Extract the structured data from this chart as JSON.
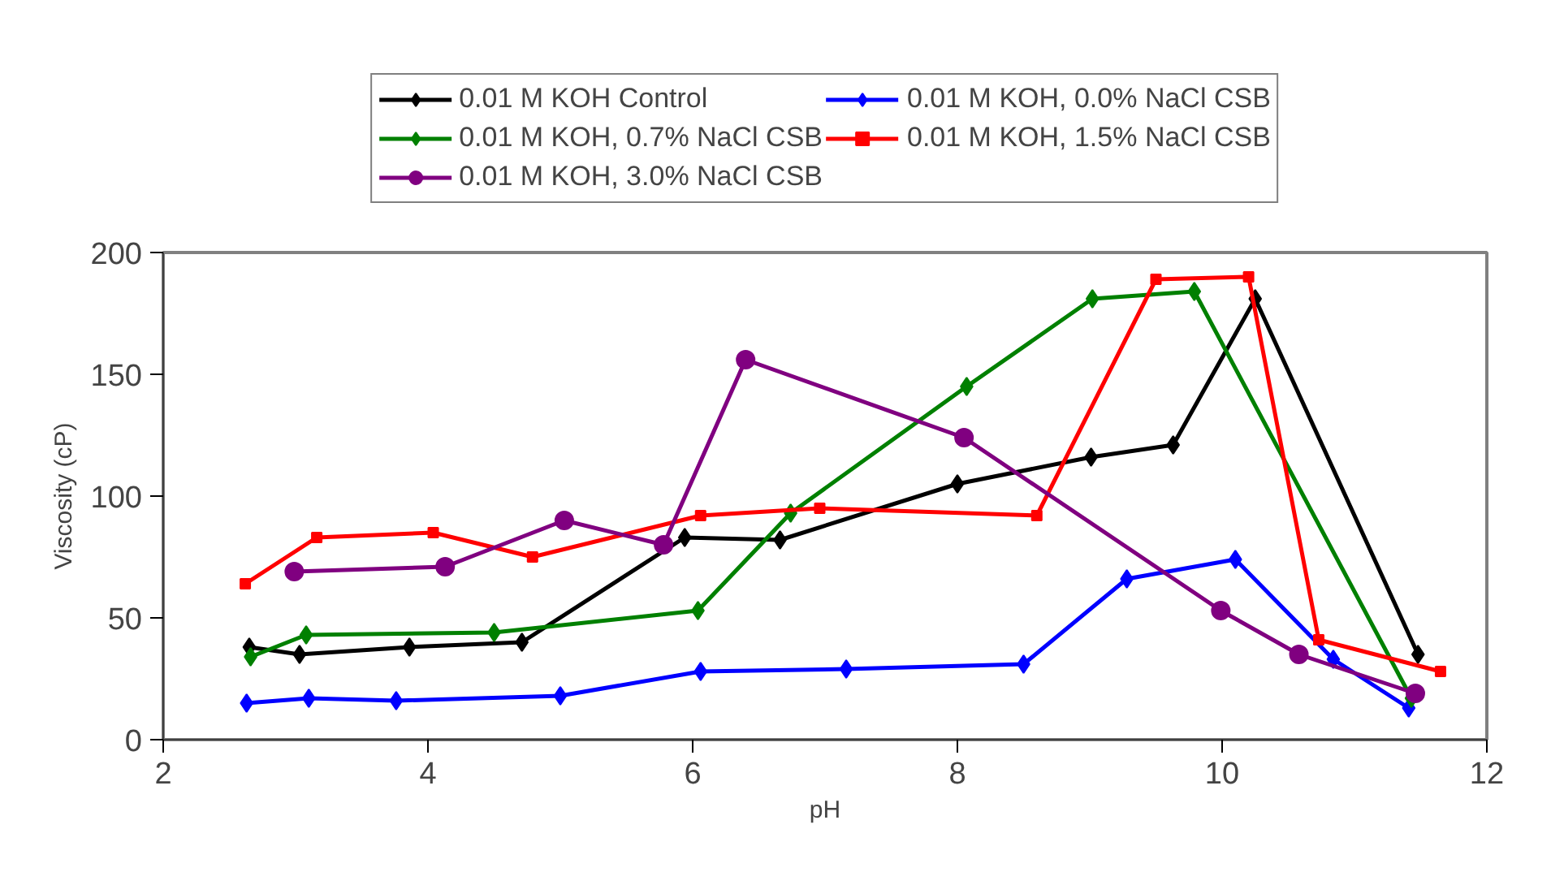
{
  "chart_data": {
    "type": "line",
    "xlabel": "pH",
    "ylabel": "Viscosity (cP)",
    "xlim": [
      2,
      12
    ],
    "xticks": [
      2,
      4,
      6,
      8,
      10,
      12
    ],
    "ylim": [
      0,
      200
    ],
    "yticks": [
      0,
      50,
      100,
      150,
      200
    ],
    "grid": false,
    "legend": "top",
    "series": [
      {
        "name": "0.01 M KOH Control",
        "color": "#000000",
        "marker": "diamond",
        "x": [
          2.65,
          3.03,
          3.86,
          4.71,
          5.94,
          6.66,
          8.0,
          9.01,
          9.63,
          10.25,
          11.48
        ],
        "values": [
          38,
          35,
          38,
          40,
          83,
          82,
          105,
          116,
          121,
          181,
          35
        ]
      },
      {
        "name": "0.01 M KOH, 0.0% NaCl CSB",
        "color": "#0000ff",
        "marker": "diamond",
        "x": [
          2.63,
          3.1,
          3.76,
          5.0,
          6.06,
          7.16,
          8.5,
          9.28,
          10.1,
          10.84,
          11.41
        ],
        "values": [
          15,
          17,
          16,
          18,
          28,
          29,
          31,
          66,
          74,
          33,
          13
        ]
      },
      {
        "name": "0.01 M KOH, 0.7% NaCl CSB",
        "color": "#008000",
        "marker": "diamond",
        "x": [
          2.66,
          3.08,
          4.5,
          6.04,
          6.74,
          8.07,
          9.02,
          9.79,
          11.43
        ],
        "values": [
          34,
          43,
          44,
          53,
          93,
          145,
          181,
          184,
          17
        ]
      },
      {
        "name": "0.01 M KOH, 1.5% NaCl CSB",
        "color": "#ff0000",
        "marker": "square",
        "x": [
          2.62,
          3.16,
          4.04,
          4.79,
          6.06,
          6.96,
          8.6,
          9.5,
          10.2,
          10.73,
          11.65
        ],
        "values": [
          64,
          83,
          85,
          75,
          92,
          95,
          92,
          189,
          190,
          41,
          28
        ]
      },
      {
        "name": "0.01 M KOH, 3.0% NaCl CSB",
        "color": "#800080",
        "marker": "circle",
        "x": [
          2.99,
          4.13,
          5.03,
          5.78,
          6.4,
          8.05,
          9.99,
          10.58,
          11.46
        ],
        "values": [
          69,
          71,
          90,
          80,
          156,
          124,
          53,
          35,
          19
        ]
      }
    ]
  }
}
